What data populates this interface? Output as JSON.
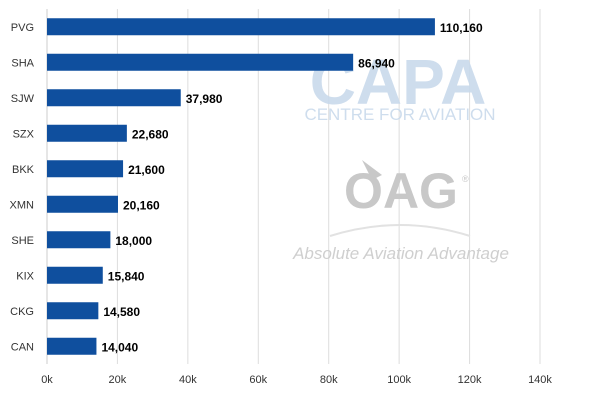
{
  "chart_data": {
    "type": "bar",
    "orientation": "horizontal",
    "categories": [
      "PVG",
      "SHA",
      "SJW",
      "SZX",
      "BKK",
      "XMN",
      "SHE",
      "KIX",
      "CKG",
      "CAN"
    ],
    "values": [
      110160,
      86940,
      37980,
      22680,
      21600,
      20160,
      18000,
      15840,
      14580,
      14040
    ],
    "value_labels": [
      "110,160",
      "86,940",
      "37,980",
      "22,680",
      "21,600",
      "20,160",
      "18,000",
      "15,840",
      "14,580",
      "14,040"
    ],
    "xlim": [
      0,
      140000
    ],
    "xticks": [
      0,
      20000,
      40000,
      60000,
      80000,
      100000,
      120000,
      140000
    ],
    "xtick_labels": [
      "0k",
      "20k",
      "40k",
      "60k",
      "80k",
      "100k",
      "120k",
      "140k"
    ],
    "grid": "vertical",
    "bar_color": "#0f4f9e",
    "grid_color": "#dddddd"
  },
  "watermarks": {
    "capa_logo": "CAPA",
    "capa_subtitle": "CENTRE FOR AVIATION",
    "oag_logo": "OAG",
    "oag_registered": "®",
    "oag_tagline": "Absolute Aviation Advantage"
  }
}
